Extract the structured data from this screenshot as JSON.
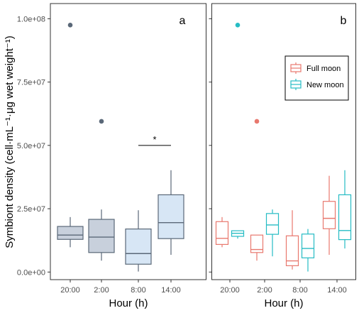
{
  "colors": {
    "panel_a_fill": "#c8d0dc",
    "panel_a_fill_light": "#d7e6f5",
    "panel_a_stroke": "#5a6878",
    "full_moon": "#e8786e",
    "new_moon": "#26bcc4",
    "frame": "#333333"
  },
  "y_axis": {
    "label": "Symbiont density (cell·mL⁻¹·μg wet weight⁻¹)",
    "ticks": [
      "0.0e+00",
      "2.5e+07",
      "5.0e+07",
      "7.5e+07",
      "1.0e+08"
    ]
  },
  "x_axis": {
    "label_a": "Hour (h)",
    "label_b": "Hour (h)"
  },
  "panels": {
    "a_label": "a",
    "b_label": "b",
    "significance": "*"
  },
  "legend": {
    "full_moon": "Full moon",
    "new_moon": "New moon"
  },
  "chart_data": [
    {
      "type": "box",
      "panel": "a",
      "categories": [
        "20:00",
        "2:00",
        "8:00",
        "14:00"
      ],
      "ylim": [
        -3000000,
        106000000
      ],
      "grid": false,
      "boxes": [
        {
          "category": "20:00",
          "whisker_low": 9800000,
          "q1": 12900000,
          "median": 14600000,
          "q3": 18000000,
          "whisker_high": 21700000,
          "outliers": [
            97500000
          ]
        },
        {
          "category": "2:00",
          "whisker_low": 4500000,
          "q1": 7700000,
          "median": 13800000,
          "q3": 20800000,
          "whisker_high": 24700000,
          "outliers": [
            59500000
          ]
        },
        {
          "category": "8:00",
          "whisker_low": 200000,
          "q1": 3100000,
          "median": 7300000,
          "q3": 17000000,
          "whisker_high": 24400000,
          "outliers": []
        },
        {
          "category": "14:00",
          "whisker_low": 6800000,
          "q1": 13200000,
          "median": 19500000,
          "q3": 30500000,
          "whisker_high": 40200000,
          "outliers": []
        }
      ],
      "annotation": {
        "text": "*",
        "from": "8:00",
        "to": "14:00",
        "y": 50000000
      }
    },
    {
      "type": "box",
      "panel": "b",
      "categories": [
        "20:00",
        "2:00",
        "8:00",
        "14:00"
      ],
      "ylim": [
        -3000000,
        106000000
      ],
      "legend_position": "top-right",
      "series": [
        {
          "name": "Full moon",
          "boxes": [
            {
              "category": "20:00",
              "whisker_low": 9800000,
              "q1": 10900000,
              "median": 13300000,
              "q3": 19900000,
              "whisker_high": 21700000,
              "outliers": []
            },
            {
              "category": "2:00",
              "whisker_low": 4500000,
              "q1": 7700000,
              "median": 8900000,
              "q3": 14600000,
              "whisker_high": 14600000,
              "outliers": [
                59500000
              ]
            },
            {
              "category": "8:00",
              "whisker_low": 1000000,
              "q1": 2500000,
              "median": 4400000,
              "q3": 14300000,
              "whisker_high": 24400000,
              "outliers": []
            },
            {
              "category": "14:00",
              "whisker_low": 6800000,
              "q1": 17100000,
              "median": 21200000,
              "q3": 27900000,
              "whisker_high": 38000000,
              "outliers": []
            }
          ]
        },
        {
          "name": "New moon",
          "boxes": [
            {
              "category": "20:00",
              "whisker_low": 13200000,
              "q1": 14100000,
              "median": 15300000,
              "q3": 16300000,
              "whisker_high": 16300000,
              "outliers": [
                97500000
              ]
            },
            {
              "category": "2:00",
              "whisker_low": 6200000,
              "q1": 14900000,
              "median": 18600000,
              "q3": 23100000,
              "whisker_high": 24700000,
              "outliers": []
            },
            {
              "category": "8:00",
              "whisker_low": 200000,
              "q1": 5600000,
              "median": 9300000,
              "q3": 15000000,
              "whisker_high": 17000000,
              "outliers": []
            },
            {
              "category": "14:00",
              "whisker_low": 9300000,
              "q1": 12800000,
              "median": 16400000,
              "q3": 30500000,
              "whisker_high": 40200000,
              "outliers": []
            }
          ]
        }
      ]
    }
  ]
}
